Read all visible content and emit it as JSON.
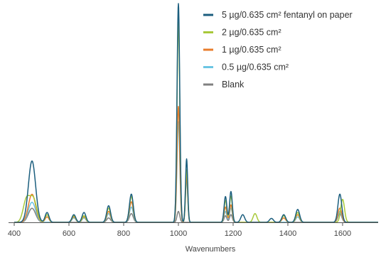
{
  "chart_data": {
    "type": "line",
    "xlabel": "Wavenumbers",
    "ylabel": "",
    "xlim": [
      400,
      1730
    ],
    "ylim": [
      0,
      1
    ],
    "x_ticks": [
      400,
      600,
      800,
      1000,
      1200,
      1400,
      1600
    ],
    "grid": false,
    "legend_position": "top-right",
    "series": [
      {
        "name": "5 µg/0.635 cm² fentanyl on paper",
        "color": "#1b5e7e",
        "scale": 1.0,
        "peaks": [
          [
            460,
            0.153
          ],
          [
            470,
            0.153
          ],
          [
            520,
            0.045
          ],
          [
            618,
            0.035
          ],
          [
            655,
            0.045
          ],
          [
            745,
            0.076
          ],
          [
            828,
            0.129
          ],
          [
            1000,
            1.0
          ],
          [
            1030,
            0.29
          ],
          [
            1172,
            0.118
          ],
          [
            1192,
            0.141
          ],
          [
            1235,
            0.035
          ],
          [
            1340,
            0.018
          ],
          [
            1385,
            0.035
          ],
          [
            1436,
            0.059
          ],
          [
            1590,
            0.129
          ]
        ]
      },
      {
        "name": "2 µg/0.635 cm²",
        "color": "#a8c93a",
        "scale": 0.88,
        "peaks": [
          [
            445,
            0.105
          ],
          [
            470,
            0.105
          ],
          [
            520,
            0.035
          ],
          [
            618,
            0.03
          ],
          [
            655,
            0.03
          ],
          [
            745,
            0.065
          ],
          [
            828,
            0.118
          ],
          [
            1000,
            0.915
          ],
          [
            1030,
            0.24
          ],
          [
            1172,
            0.1
          ],
          [
            1192,
            0.12
          ],
          [
            1280,
            0.04
          ],
          [
            1385,
            0.03
          ],
          [
            1436,
            0.045
          ],
          [
            1600,
            0.105
          ]
        ]
      },
      {
        "name": "1 µg/0.635 cm²",
        "color": "#e87d2c",
        "scale": 0.7,
        "peaks": [
          [
            460,
            0.07
          ],
          [
            470,
            0.07
          ],
          [
            520,
            0.025
          ],
          [
            618,
            0.025
          ],
          [
            655,
            0.025
          ],
          [
            745,
            0.05
          ],
          [
            828,
            0.094
          ],
          [
            1000,
            0.53
          ],
          [
            1030,
            0.21
          ],
          [
            1172,
            0.07
          ],
          [
            1192,
            0.08
          ],
          [
            1385,
            0.02
          ],
          [
            1436,
            0.035
          ],
          [
            1590,
            0.065
          ]
        ]
      },
      {
        "name": "0.5 µg/0.635 cm²",
        "color": "#6bc5e3",
        "scale": 0.55,
        "peaks": [
          [
            460,
            0.05
          ],
          [
            470,
            0.05
          ],
          [
            618,
            0.02
          ],
          [
            655,
            0.02
          ],
          [
            745,
            0.04
          ],
          [
            828,
            0.07
          ],
          [
            1000,
            0.46
          ],
          [
            1030,
            0.2
          ],
          [
            1172,
            0.05
          ],
          [
            1192,
            0.065
          ],
          [
            1436,
            0.025
          ],
          [
            1590,
            0.05
          ]
        ]
      },
      {
        "name": "Blank",
        "color": "#808080",
        "scale": 0.3,
        "peaks": [
          [
            460,
            0.035
          ],
          [
            470,
            0.035
          ],
          [
            745,
            0.02
          ],
          [
            828,
            0.04
          ],
          [
            1000,
            0.05
          ],
          [
            1172,
            0.03
          ],
          [
            1192,
            0.035
          ],
          [
            1590,
            0.04
          ]
        ]
      }
    ]
  }
}
